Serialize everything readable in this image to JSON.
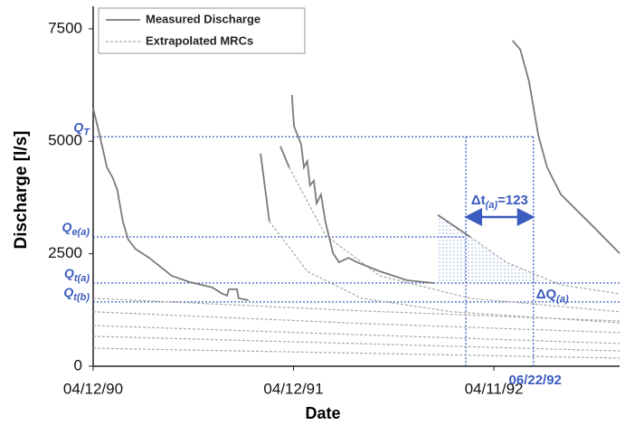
{
  "chart_data": {
    "type": "line",
    "xlabel": "Date",
    "ylabel": "Discharge [l/s]",
    "xlim": [
      "04/12/90",
      "11/26/92"
    ],
    "xticks": [
      "04/12/90",
      "04/12/91",
      "04/11/92"
    ],
    "ylim": [
      0,
      8000
    ],
    "yticks": [
      0,
      2500,
      5000,
      7500
    ],
    "series": [
      {
        "name": "Measured Discharge",
        "color": "#7a7a7a",
        "dash": false,
        "x": [
          "04/12/90",
          "04/24/90",
          "05/07/90",
          "05/18/90",
          "05/26/90",
          "06/05/90",
          "06/15/90",
          "06/28/90",
          "07/23/90",
          "09/02/90",
          "10/05/90",
          "11/15/90",
          "12/02/90",
          "12/12/90",
          "12/15/90",
          "12/30/90",
          "01/02/91",
          "01/20/91",
          "01/30/91",
          "02/11/91",
          "02/27/91",
          "03/10/91",
          "03/19/91",
          "04/04/91",
          "04/06/91",
          "04/09/91",
          "04/13/91",
          "04/26/91",
          "05/01/91",
          "05/07/91",
          "05/12/91",
          "05/19/91",
          "05/24/91",
          "06/01/91",
          "06/09/91",
          "06/23/91",
          "07/04/91",
          "07/21/91",
          "08/06/91",
          "09/16/91",
          "11/05/91",
          "12/24/91",
          "12/27/91",
          "12/31/91",
          "02/28/92",
          "04/01/92",
          "05/15/92",
          "05/29/92",
          "06/14/92",
          "07/01/92",
          "07/17/92",
          "08/11/92",
          "09/13/92",
          "10/16/92",
          "11/26/92"
        ],
        "values": [
          5730,
          5130,
          4420,
          4180,
          3920,
          3220,
          2815,
          2610,
          2410,
          2010,
          1870,
          1750,
          1620,
          1570,
          1710,
          1710,
          1510,
          1470,
          null,
          4730,
          3220,
          null,
          4890,
          4420,
          null,
          6030,
          5330,
          4930,
          4420,
          4560,
          4020,
          4120,
          3620,
          3820,
          3220,
          2510,
          2310,
          2410,
          2310,
          2110,
          1910,
          1850,
          null,
          3360,
          2875,
          null,
          7240,
          7040,
          6330,
          5130,
          4420,
          3820,
          3420,
          3020,
          2510
        ]
      },
      {
        "name": "Extrapolated MRCs",
        "color": "#a8a8a8",
        "dash": true,
        "x": [
          "02/27/91",
          "05/07/91",
          "08/14/91",
          "01/26/92",
          "11/26/92",
          "12/01/92",
          "04/04/91",
          "06/09/91",
          "09/16/91",
          "02/28/92",
          "11/26/92",
          "12/01/92",
          "02/28/92",
          "05/04/92",
          "08/11/92",
          "11/26/92",
          "12/01/92",
          "04/12/90",
          "08/14/91",
          "11/26/92",
          "12/01/92",
          "04/12/90",
          "08/14/91",
          "11/26/92",
          "12/01/92",
          "04/12/90",
          "08/14/91",
          "11/26/92",
          "12/01/92",
          "04/12/90",
          "08/14/91",
          "11/26/92",
          "12/01/92",
          "04/12/90",
          "08/14/91",
          "11/26/92"
        ],
        "values": [
          3220,
          2110,
          1510,
          1210,
          965,
          null,
          4420,
          2915,
          2010,
          1510,
          1210,
          null,
          2875,
          2310,
          1810,
          1610,
          null,
          1510,
          1230,
          1005,
          null,
          1210,
          950,
          745,
          null,
          905,
          700,
          505,
          null,
          665,
          500,
          340,
          null,
          400,
          290,
          180
        ]
      }
    ],
    "legend": "upper left",
    "annotations": {
      "levels": [
        {
          "symbol": "Q",
          "subscript": "T",
          "value": 5100,
          "x_end": "06/22/92"
        },
        {
          "symbol": "Q",
          "subscript": "e(a)",
          "value": 2875,
          "x_end": "02/20/92"
        },
        {
          "symbol": "Q",
          "subscript": "t(a)",
          "value": 1850,
          "x_end": "11/26/92"
        },
        {
          "symbol": "Q",
          "subscript": "t(b)",
          "value": 1430,
          "x_end": "11/26/92"
        }
      ],
      "times": [
        {
          "x": "02/20/92"
        },
        {
          "x": "06/22/92",
          "label": "06/22/92"
        }
      ],
      "dt": {
        "text": "Δt",
        "subscript": "(a)",
        "suffix": "=123"
      },
      "dq": {
        "text": "ΔQ",
        "subscript": "(a)"
      },
      "color": "#3a5bbf"
    }
  }
}
